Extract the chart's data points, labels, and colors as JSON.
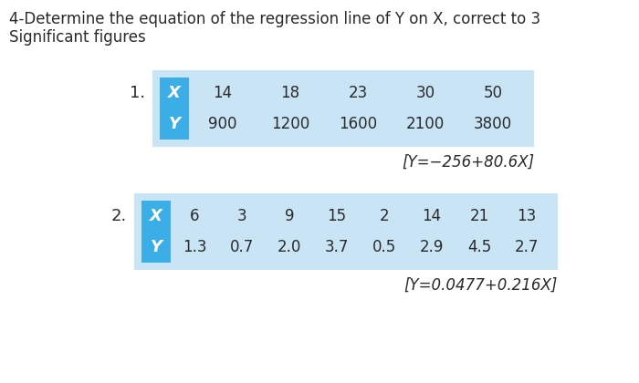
{
  "title_line1": "4-Determine the equation of the regression line of Y on X, correct to 3",
  "title_line2": "Significant figures",
  "title_fontsize": 12,
  "bg_color": "#ffffff",
  "outer_bg": "#c8e4f5",
  "header_cell_color": "#3baee8",
  "table1": {
    "rows": [
      [
        "X",
        "14",
        "18",
        "23",
        "30",
        "50"
      ],
      [
        "Y",
        "900",
        "1200",
        "1600",
        "2100",
        "3800"
      ]
    ],
    "answer_text": "[Y=−256+80.6X]"
  },
  "table2": {
    "rows": [
      [
        "X",
        "6",
        "3",
        "9",
        "15",
        "2",
        "14",
        "21",
        "13"
      ],
      [
        "Y",
        "1.3",
        "0.7",
        "2.0",
        "3.7",
        "0.5",
        "2.9",
        "4.5",
        "2.7"
      ]
    ],
    "answer_text": "[Y=0.0477+0.216X]"
  },
  "label1": "1.",
  "label2": "2.",
  "text_color": "#2a2a2a",
  "white": "#ffffff",
  "answer_fontsize": 12,
  "data_fontsize": 12,
  "header_fontsize": 13,
  "label_fontsize": 13
}
